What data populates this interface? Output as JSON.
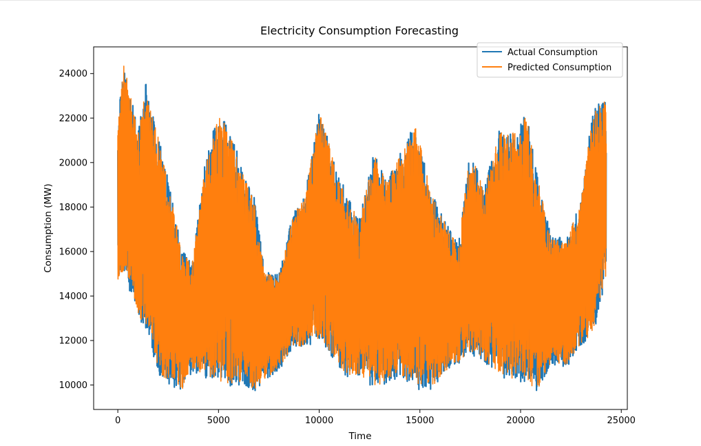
{
  "chart_data": {
    "type": "line",
    "title": "Electricity Consumption Forecasting",
    "xlabel": "Time",
    "ylabel": "Consumption (MW)",
    "xlim": [
      -1200,
      25300
    ],
    "ylim": [
      8900,
      25200
    ],
    "xticks": [
      0,
      5000,
      10000,
      15000,
      20000,
      25000
    ],
    "xtick_labels": [
      "0",
      "5000",
      "10000",
      "15000",
      "20000",
      "25000"
    ],
    "yticks": [
      10000,
      12000,
      14000,
      16000,
      18000,
      20000,
      22000,
      24000
    ],
    "ytick_labels": [
      "10000",
      "12000",
      "14000",
      "16000",
      "18000",
      "20000",
      "22000",
      "24000"
    ],
    "grid": false,
    "legend_position": "top-right",
    "series": [
      {
        "name": "Actual Consumption",
        "color": "#1f77b4",
        "x_range": [
          0,
          24250
        ],
        "envelope": {
          "x": [
            0,
            300,
            1000,
            1400,
            2000,
            2600,
            3200,
            3700,
            4300,
            5000,
            5600,
            6200,
            6800,
            7300,
            8000,
            8700,
            9300,
            10000,
            10700,
            11400,
            12000,
            12700,
            13400,
            14000,
            14800,
            15500,
            16200,
            16900,
            17500,
            18200,
            18900,
            19600,
            20300,
            20800,
            21500,
            22300,
            23000,
            23600,
            24250
          ],
          "high": [
            21800,
            24700,
            21500,
            23600,
            21300,
            18800,
            16000,
            15600,
            19800,
            22400,
            21500,
            19700,
            18400,
            15100,
            15000,
            17700,
            18600,
            22300,
            20300,
            18500,
            17500,
            20500,
            19200,
            20500,
            21800,
            18900,
            17500,
            16300,
            20600,
            18800,
            21500,
            21400,
            22300,
            19600,
            16700,
            16600,
            18400,
            22500,
            22800
          ],
          "low": [
            14700,
            15000,
            13000,
            12500,
            10500,
            10000,
            9700,
            10600,
            10300,
            10100,
            9900,
            10000,
            9700,
            10200,
            10600,
            11700,
            11600,
            12000,
            11200,
            10300,
            10400,
            9800,
            10000,
            10400,
            9800,
            9700,
            10500,
            10900,
            11400,
            11000,
            10400,
            10200,
            10100,
            9700,
            10900,
            10800,
            11800,
            12200,
            14800
          ]
        }
      },
      {
        "name": "Predicted Consumption",
        "color": "#ff7f0e",
        "x_range": [
          0,
          24250
        ],
        "envelope": {
          "x": [
            0,
            300,
            1000,
            1400,
            2000,
            2600,
            3200,
            3700,
            4300,
            5000,
            5600,
            6200,
            6800,
            7300,
            8000,
            8700,
            9300,
            10000,
            10700,
            11400,
            12000,
            12700,
            13400,
            14000,
            14800,
            15500,
            16200,
            16900,
            17500,
            18200,
            18900,
            19600,
            20300,
            20800,
            21500,
            22300,
            23000,
            23600,
            24250
          ],
          "high": [
            21500,
            24600,
            21300,
            23400,
            21200,
            18700,
            15900,
            15500,
            19600,
            22300,
            21400,
            19600,
            18300,
            15000,
            14900,
            17600,
            18500,
            22300,
            20200,
            18400,
            17400,
            20400,
            19100,
            20400,
            21700,
            18800,
            17400,
            16200,
            20500,
            18700,
            21400,
            21300,
            22200,
            19500,
            16600,
            16500,
            18300,
            22400,
            22800
          ],
          "low": [
            14300,
            15200,
            13100,
            12600,
            10600,
            10100,
            9800,
            10700,
            10400,
            10200,
            10000,
            10100,
            9700,
            10300,
            10700,
            11800,
            11700,
            12100,
            11300,
            10400,
            10500,
            9900,
            10100,
            10500,
            9900,
            9800,
            10600,
            11000,
            11500,
            11100,
            10500,
            10300,
            10200,
            9700,
            11000,
            10900,
            11900,
            12300,
            14900
          ]
        }
      }
    ]
  }
}
